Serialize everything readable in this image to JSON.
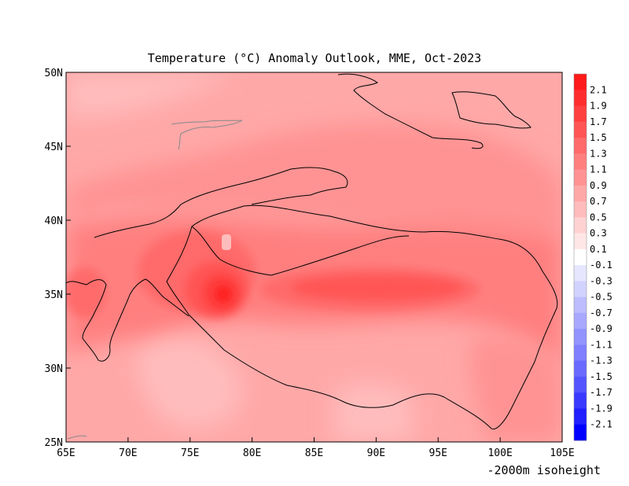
{
  "chart_data": {
    "type": "heatmap",
    "title": "Temperature (°C) Anomaly Outlook, MME, Oct-2023",
    "footnote": "-2000m isoheight",
    "x_ticks": [
      "65E",
      "70E",
      "75E",
      "80E",
      "85E",
      "90E",
      "95E",
      "100E",
      "105E"
    ],
    "x_tick_values": [
      65,
      70,
      75,
      80,
      85,
      90,
      95,
      100,
      105
    ],
    "y_ticks": [
      "25N",
      "30N",
      "35N",
      "40N",
      "45N",
      "50N"
    ],
    "y_tick_values": [
      25,
      30,
      35,
      40,
      45,
      50
    ],
    "xlim": [
      65,
      105
    ],
    "ylim": [
      25,
      50
    ],
    "grid": false,
    "colorbar": {
      "labels": [
        "2.1",
        "1.9",
        "1.7",
        "1.5",
        "1.3",
        "1.1",
        "0.9",
        "0.7",
        "0.5",
        "0.3",
        "0.1",
        "-0.1",
        "-0.3",
        "-0.5",
        "-0.7",
        "-0.9",
        "-1.1",
        "-1.3",
        "-1.5",
        "-1.7",
        "-1.9",
        "-2.1"
      ],
      "colors": [
        "#ff1a1a",
        "#ff2e2e",
        "#ff4040",
        "#ff5555",
        "#ff6a6a",
        "#ff7f7f",
        "#ff9393",
        "#ffa8a8",
        "#ffbcbc",
        "#ffd2d2",
        "#ffe6e6",
        "#ffffff",
        "#e6e6ff",
        "#d2d2ff",
        "#bcbcff",
        "#a8a8ff",
        "#9393ff",
        "#7f7fff",
        "#6a6aff",
        "#5555ff",
        "#3a3aff",
        "#2020ff",
        "#0000ff"
      ]
    },
    "anomaly_field": [
      {
        "lon": 77.6,
        "lat": 35.0,
        "value": 2.1
      },
      {
        "lon": 77.0,
        "lat": 36.0,
        "value": 1.5
      },
      {
        "lon": 76.0,
        "lat": 37.5,
        "value": 1.3
      },
      {
        "lon": 90.0,
        "lat": 35.0,
        "value": 1.4
      },
      {
        "lon": 96.0,
        "lat": 35.0,
        "value": 1.3
      },
      {
        "lon": 85.0,
        "lat": 38.0,
        "value": 1.1
      },
      {
        "lon": 100.0,
        "lat": 40.0,
        "value": 1.0
      },
      {
        "lon": 68.0,
        "lat": 35.0,
        "value": 1.2
      },
      {
        "lon": 90.0,
        "lat": 42.0,
        "value": 0.9
      },
      {
        "lon": 80.0,
        "lat": 47.0,
        "value": 0.7
      },
      {
        "lon": 70.0,
        "lat": 48.0,
        "value": 0.5
      },
      {
        "lon": 85.0,
        "lat": 30.0,
        "value": 0.6
      },
      {
        "lon": 76.0,
        "lat": 30.0,
        "value": 0.4
      },
      {
        "lon": 93.0,
        "lat": 26.5,
        "value": 0.4
      },
      {
        "lon": 100.0,
        "lat": 30.0,
        "value": 0.8
      },
      {
        "lon": 103.0,
        "lat": 27.0,
        "value": 0.9
      }
    ]
  }
}
